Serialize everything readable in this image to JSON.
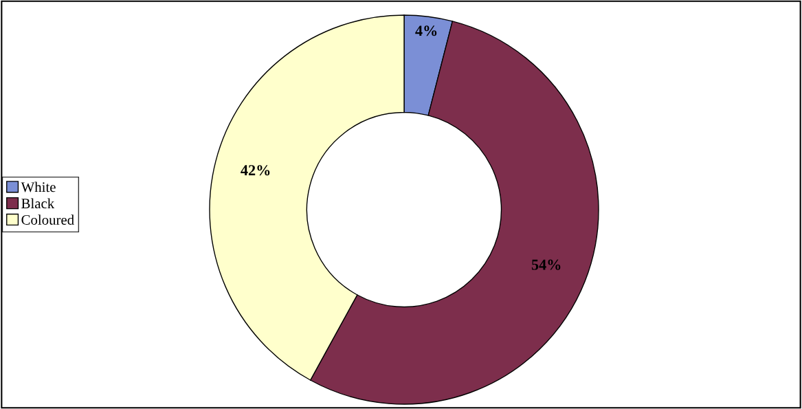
{
  "chart_data": {
    "type": "donut",
    "categories": [
      "White",
      "Black",
      "Coloured"
    ],
    "values": [
      4,
      54,
      42
    ],
    "colors": [
      "#7b8fd6",
      "#7d2e4c",
      "#ffffcc"
    ],
    "data_labels": true,
    "value_labels": [
      "4%",
      "54%",
      "42%"
    ],
    "legend": "left"
  }
}
